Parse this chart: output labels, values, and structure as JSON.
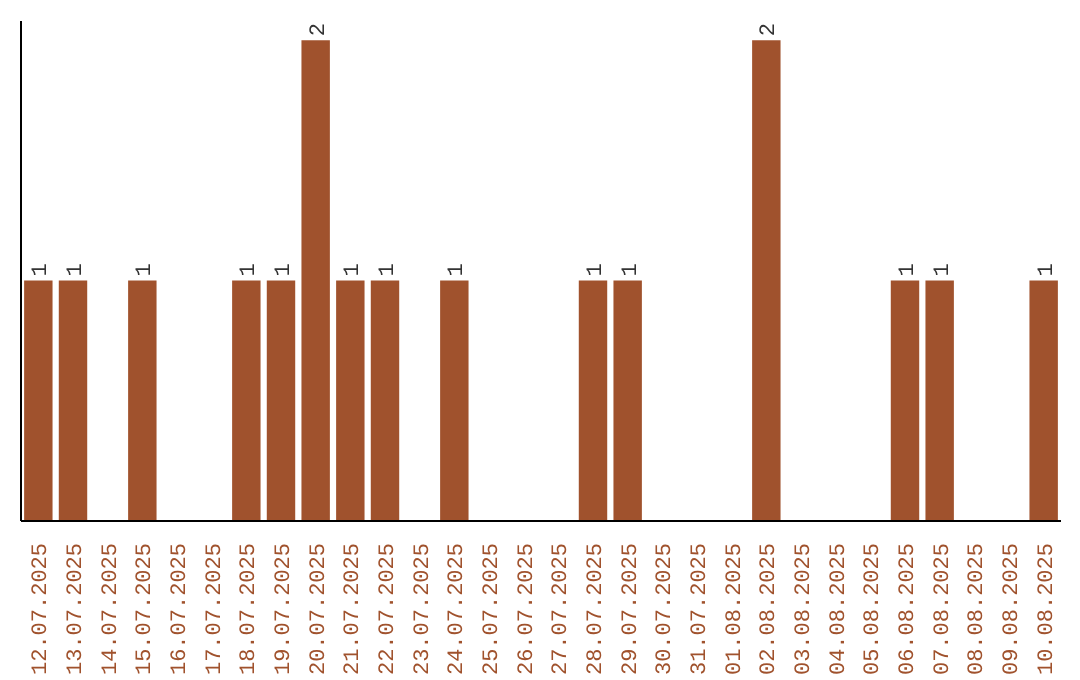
{
  "chart_data": {
    "type": "bar",
    "color": "#a0522d",
    "categories": [
      "12.07.2025",
      "13.07.2025",
      "14.07.2025",
      "15.07.2025",
      "16.07.2025",
      "17.07.2025",
      "18.07.2025",
      "19.07.2025",
      "20.07.2025",
      "21.07.2025",
      "22.07.2025",
      "23.07.2025",
      "24.07.2025",
      "25.07.2025",
      "26.07.2025",
      "27.07.2025",
      "28.07.2025",
      "29.07.2025",
      "30.07.2025",
      "31.07.2025",
      "01.08.2025",
      "02.08.2025",
      "03.08.2025",
      "04.08.2025",
      "05.08.2025",
      "06.08.2025",
      "07.08.2025",
      "08.08.2025",
      "09.08.2025",
      "10.08.2025"
    ],
    "values": [
      1,
      1,
      0,
      1,
      0,
      0,
      1,
      1,
      2,
      1,
      1,
      0,
      1,
      0,
      0,
      0,
      1,
      1,
      0,
      0,
      0,
      2,
      0,
      0,
      0,
      1,
      1,
      0,
      0,
      1
    ],
    "value_labels": [
      "1",
      "1",
      null,
      "1",
      null,
      null,
      "1",
      "1",
      "2",
      "1",
      "1",
      null,
      "1",
      null,
      null,
      null,
      "1",
      "1",
      null,
      null,
      null,
      "2",
      null,
      null,
      null,
      "1",
      "1",
      null,
      null,
      "1"
    ],
    "tick_labels": "x",
    "grid": false
  }
}
